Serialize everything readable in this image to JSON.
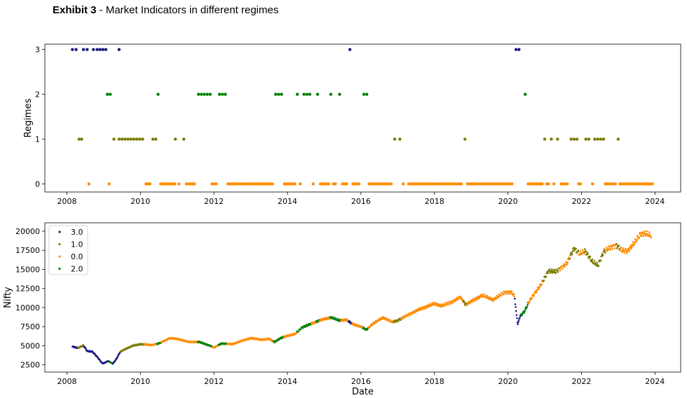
{
  "title": {
    "bold": "Exhibit 3",
    "rest": " - Market Indicators in different regimes"
  },
  "colors": {
    "3.0": "#1a1a80",
    "1.0": "#7a7a00",
    "0.0": "#ff8c00",
    "2.0": "#008000"
  },
  "chart_data": [
    {
      "type": "scatter",
      "ylabel": "Regimes",
      "xlabel": "",
      "xlim": [
        2007.4,
        2024.7
      ],
      "ylim": [
        -0.18,
        3.12
      ],
      "xticks": [
        "2008",
        "2010",
        "2012",
        "2014",
        "2016",
        "2018",
        "2020",
        "2022",
        "2024"
      ],
      "yticks": [
        "0",
        "1",
        "2",
        "3"
      ],
      "series": [
        {
          "name": "3.0",
          "points": [
            [
              2008.15,
              3
            ],
            [
              2008.25,
              3
            ],
            [
              2008.45,
              3
            ],
            [
              2008.55,
              3
            ],
            [
              2008.72,
              3
            ],
            [
              2008.82,
              3
            ],
            [
              2008.9,
              3
            ],
            [
              2008.98,
              3
            ],
            [
              2009.06,
              3
            ],
            [
              2009.42,
              3
            ],
            [
              2015.7,
              3
            ],
            [
              2020.22,
              3
            ],
            [
              2020.3,
              3
            ]
          ]
        },
        {
          "name": "2.0",
          "points": [
            [
              2009.1,
              2
            ],
            [
              2009.18,
              2
            ],
            [
              2010.48,
              2
            ],
            [
              2011.58,
              2
            ],
            [
              2011.66,
              2
            ],
            [
              2011.74,
              2
            ],
            [
              2011.82,
              2
            ],
            [
              2011.9,
              2
            ],
            [
              2012.15,
              2
            ],
            [
              2012.23,
              2
            ],
            [
              2012.31,
              2
            ],
            [
              2013.68,
              2
            ],
            [
              2013.76,
              2
            ],
            [
              2013.84,
              2
            ],
            [
              2014.27,
              2
            ],
            [
              2014.45,
              2
            ],
            [
              2014.53,
              2
            ],
            [
              2014.61,
              2
            ],
            [
              2014.82,
              2
            ],
            [
              2015.18,
              2
            ],
            [
              2015.42,
              2
            ],
            [
              2016.08,
              2
            ],
            [
              2016.16,
              2
            ],
            [
              2020.47,
              2
            ]
          ]
        },
        {
          "name": "1.0",
          "points": [
            [
              2008.33,
              1
            ],
            [
              2008.4,
              1
            ],
            [
              2009.28,
              1
            ],
            [
              2009.42,
              1
            ],
            [
              2009.5,
              1
            ],
            [
              2009.58,
              1
            ],
            [
              2009.66,
              1
            ],
            [
              2009.74,
              1
            ],
            [
              2009.82,
              1
            ],
            [
              2009.9,
              1
            ],
            [
              2009.98,
              1
            ],
            [
              2010.06,
              1
            ],
            [
              2010.34,
              1
            ],
            [
              2010.42,
              1
            ],
            [
              2010.95,
              1
            ],
            [
              2011.18,
              1
            ],
            [
              2016.92,
              1
            ],
            [
              2017.06,
              1
            ],
            [
              2018.83,
              1
            ],
            [
              2021.0,
              1
            ],
            [
              2021.18,
              1
            ],
            [
              2021.35,
              1
            ],
            [
              2021.72,
              1
            ],
            [
              2021.8,
              1
            ],
            [
              2021.88,
              1
            ],
            [
              2022.12,
              1
            ],
            [
              2022.2,
              1
            ],
            [
              2022.36,
              1
            ],
            [
              2022.44,
              1
            ],
            [
              2022.52,
              1
            ],
            [
              2022.6,
              1
            ],
            [
              2023.0,
              1
            ]
          ]
        },
        {
          "name": "0.0",
          "points": []
        }
      ]
    },
    {
      "type": "scatter",
      "ylabel": "Nifty",
      "xlabel": "Date",
      "xlim": [
        2007.4,
        2024.7
      ],
      "ylim": [
        1550,
        21100
      ],
      "xticks": [
        "2008",
        "2010",
        "2012",
        "2014",
        "2016",
        "2018",
        "2020",
        "2022",
        "2024"
      ],
      "yticks": [
        "2500",
        "5000",
        "7500",
        "10000",
        "12500",
        "15000",
        "17500",
        "20000"
      ],
      "legend": {
        "position": "top-left",
        "entries": [
          "3.0",
          "1.0",
          "0.0",
          "2.0"
        ]
      },
      "nifty_path": [
        [
          2008.15,
          4900
        ],
        [
          2008.3,
          4700
        ],
        [
          2008.45,
          5050
        ],
        [
          2008.55,
          4300
        ],
        [
          2008.7,
          4200
        ],
        [
          2008.85,
          3400
        ],
        [
          2008.95,
          2750
        ],
        [
          2009.0,
          2700
        ],
        [
          2009.12,
          3000
        ],
        [
          2009.2,
          2800
        ],
        [
          2009.25,
          2650
        ],
        [
          2009.35,
          3300
        ],
        [
          2009.45,
          4200
        ],
        [
          2009.6,
          4600
        ],
        [
          2009.8,
          5000
        ],
        [
          2010.0,
          5200
        ],
        [
          2010.3,
          5100
        ],
        [
          2010.5,
          5300
        ],
        [
          2010.8,
          6000
        ],
        [
          2011.0,
          5900
        ],
        [
          2011.3,
          5500
        ],
        [
          2011.6,
          5500
        ],
        [
          2011.9,
          5000
        ],
        [
          2012.0,
          4750
        ],
        [
          2012.2,
          5300
        ],
        [
          2012.5,
          5200
        ],
        [
          2012.8,
          5700
        ],
        [
          2013.0,
          6000
        ],
        [
          2013.3,
          5800
        ],
        [
          2013.5,
          5900
        ],
        [
          2013.65,
          5500
        ],
        [
          2013.8,
          5950
        ],
        [
          2014.0,
          6300
        ],
        [
          2014.2,
          6500
        ],
        [
          2014.4,
          7400
        ],
        [
          2014.6,
          7800
        ],
        [
          2014.8,
          8200
        ],
        [
          2015.0,
          8500
        ],
        [
          2015.2,
          8700
        ],
        [
          2015.4,
          8300
        ],
        [
          2015.6,
          8400
        ],
        [
          2015.75,
          7900
        ],
        [
          2016.0,
          7500
        ],
        [
          2016.15,
          7100
        ],
        [
          2016.3,
          7800
        ],
        [
          2016.6,
          8700
        ],
        [
          2016.85,
          8100
        ],
        [
          2017.0,
          8300
        ],
        [
          2017.3,
          9100
        ],
        [
          2017.6,
          9800
        ],
        [
          2018.0,
          10500
        ],
        [
          2018.2,
          10200
        ],
        [
          2018.5,
          10800
        ],
        [
          2018.7,
          11400
        ],
        [
          2018.85,
          10400
        ],
        [
          2019.0,
          10800
        ],
        [
          2019.3,
          11600
        ],
        [
          2019.6,
          11000
        ],
        [
          2019.9,
          12000
        ],
        [
          2020.1,
          12000
        ],
        [
          2020.18,
          11500
        ],
        [
          2020.22,
          9500
        ],
        [
          2020.27,
          7800
        ],
        [
          2020.32,
          8800
        ],
        [
          2020.45,
          9500
        ],
        [
          2020.6,
          11000
        ],
        [
          2020.9,
          13000
        ],
        [
          2021.1,
          14800
        ],
        [
          2021.3,
          14700
        ],
        [
          2021.6,
          15800
        ],
        [
          2021.8,
          17800
        ],
        [
          2021.95,
          17000
        ],
        [
          2022.1,
          17400
        ],
        [
          2022.3,
          16000
        ],
        [
          2022.45,
          15500
        ],
        [
          2022.6,
          17300
        ],
        [
          2022.75,
          17800
        ],
        [
          2022.95,
          18200
        ],
        [
          2023.1,
          17500
        ],
        [
          2023.25,
          17400
        ],
        [
          2023.45,
          18500
        ],
        [
          2023.6,
          19600
        ],
        [
          2023.75,
          19700
        ],
        [
          2023.9,
          19400
        ]
      ],
      "nifty_segments": [
        {
          "regime": "3.0",
          "from": 2008.1,
          "to": 2008.3
        },
        {
          "regime": "1.0",
          "from": 2008.3,
          "to": 2008.45
        },
        {
          "regime": "3.0",
          "from": 2008.45,
          "to": 2009.15
        },
        {
          "regime": "2.0",
          "from": 2009.15,
          "to": 2009.25
        },
        {
          "regime": "3.0",
          "from": 2009.25,
          "to": 2009.45
        },
        {
          "regime": "1.0",
          "from": 2009.45,
          "to": 2010.1
        },
        {
          "regime": "0.0",
          "from": 2010.1,
          "to": 2010.45
        },
        {
          "regime": "2.0",
          "from": 2010.45,
          "to": 2010.55
        },
        {
          "regime": "0.0",
          "from": 2010.55,
          "to": 2011.55
        },
        {
          "regime": "2.0",
          "from": 2011.55,
          "to": 2011.95
        },
        {
          "regime": "0.0",
          "from": 2011.95,
          "to": 2012.12
        },
        {
          "regime": "2.0",
          "from": 2012.12,
          "to": 2012.35
        },
        {
          "regime": "0.0",
          "from": 2012.35,
          "to": 2013.62
        },
        {
          "regime": "2.0",
          "from": 2013.62,
          "to": 2013.9
        },
        {
          "regime": "0.0",
          "from": 2013.9,
          "to": 2014.25
        },
        {
          "regime": "2.0",
          "from": 2014.25,
          "to": 2014.65
        },
        {
          "regime": "0.0",
          "from": 2014.65,
          "to": 2014.78
        },
        {
          "regime": "2.0",
          "from": 2014.78,
          "to": 2014.86
        },
        {
          "regime": "0.0",
          "from": 2014.86,
          "to": 2015.15
        },
        {
          "regime": "2.0",
          "from": 2015.15,
          "to": 2015.45
        },
        {
          "regime": "0.0",
          "from": 2015.45,
          "to": 2015.65
        },
        {
          "regime": "3.0",
          "from": 2015.65,
          "to": 2015.75
        },
        {
          "regime": "0.0",
          "from": 2015.75,
          "to": 2016.05
        },
        {
          "regime": "2.0",
          "from": 2016.05,
          "to": 2016.2
        },
        {
          "regime": "0.0",
          "from": 2016.2,
          "to": 2016.88
        },
        {
          "regime": "1.0",
          "from": 2016.88,
          "to": 2017.1
        },
        {
          "regime": "0.0",
          "from": 2017.1,
          "to": 2018.78
        },
        {
          "regime": "1.0",
          "from": 2018.78,
          "to": 2018.88
        },
        {
          "regime": "0.0",
          "from": 2018.88,
          "to": 2020.18
        },
        {
          "regime": "3.0",
          "from": 2020.18,
          "to": 2020.36
        },
        {
          "regime": "2.0",
          "from": 2020.36,
          "to": 2020.55
        },
        {
          "regime": "0.0",
          "from": 2020.55,
          "to": 2020.95
        },
        {
          "regime": "1.0",
          "from": 2020.95,
          "to": 2021.4
        },
        {
          "regime": "0.0",
          "from": 2021.4,
          "to": 2021.68
        },
        {
          "regime": "1.0",
          "from": 2021.68,
          "to": 2021.92
        },
        {
          "regime": "0.0",
          "from": 2021.92,
          "to": 2022.08
        },
        {
          "regime": "1.0",
          "from": 2022.08,
          "to": 2022.65
        },
        {
          "regime": "0.0",
          "from": 2022.65,
          "to": 2022.95
        },
        {
          "regime": "1.0",
          "from": 2022.95,
          "to": 2023.05
        },
        {
          "regime": "0.0",
          "from": 2023.05,
          "to": 2024.0
        }
      ]
    }
  ]
}
